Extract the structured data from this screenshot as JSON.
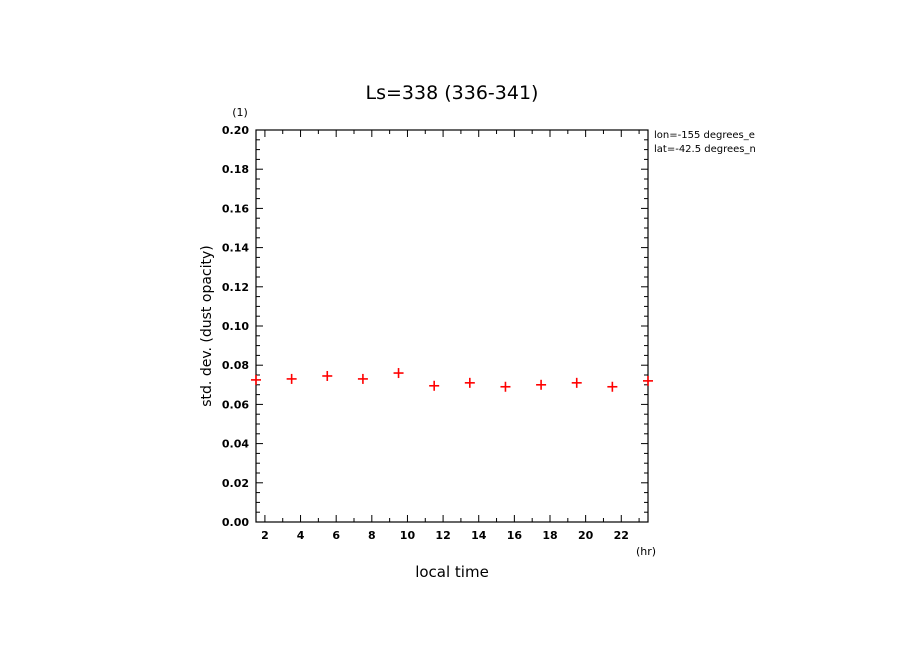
{
  "chart_data": {
    "type": "scatter",
    "title": "Ls=338 (336-341)",
    "xlabel": "local time",
    "xunit": "(hr)",
    "ylabel": "std. dev. (dust opacity)",
    "yunit": "(1)",
    "xlim": [
      1.5,
      23.5
    ],
    "ylim": [
      0,
      0.2
    ],
    "xticks": [
      2,
      4,
      6,
      8,
      10,
      12,
      14,
      16,
      18,
      20,
      22
    ],
    "xtick_labels": [
      "2",
      "4",
      "6",
      "8",
      "10",
      "12",
      "14",
      "16",
      "18",
      "20",
      "22"
    ],
    "yticks": [
      0,
      0.02,
      0.04,
      0.06,
      0.08,
      0.1,
      0.12,
      0.14,
      0.16,
      0.18,
      0.2
    ],
    "ytick_labels": [
      "0.00",
      "0.02",
      "0.04",
      "0.06",
      "0.08",
      "0.10",
      "0.12",
      "0.14",
      "0.16",
      "0.18",
      "0.20"
    ],
    "annotations": [
      "lon=-155 degrees_e",
      "lat=-42.5 degrees_n"
    ],
    "grid": false,
    "marker_color": "#ff0000",
    "series": [
      {
        "x": [
          1.5,
          3.5,
          5.5,
          7.5,
          9.5,
          11.5,
          13.5,
          15.5,
          17.5,
          19.5,
          21.5,
          23.5
        ],
        "y": [
          0.0725,
          0.073,
          0.0745,
          0.073,
          0.076,
          0.0695,
          0.071,
          0.069,
          0.07,
          0.071,
          0.069,
          0.072
        ]
      }
    ]
  }
}
